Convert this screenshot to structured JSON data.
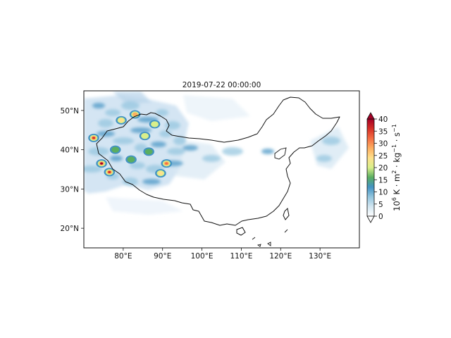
{
  "title": "2019-07-22 00:00:00",
  "map": {
    "lon_range": [
      70,
      140
    ],
    "lat_range": [
      15,
      55
    ],
    "lon_ticks": [
      {
        "value": 80,
        "label": "80°E"
      },
      {
        "value": 90,
        "label": "90°E"
      },
      {
        "value": 100,
        "label": "100°E"
      },
      {
        "value": 110,
        "label": "110°E"
      },
      {
        "value": 120,
        "label": "120°E"
      },
      {
        "value": 130,
        "label": "130°E"
      }
    ],
    "lat_ticks": [
      {
        "value": 20,
        "label": "20°N"
      },
      {
        "value": 30,
        "label": "30°N"
      },
      {
        "value": 40,
        "label": "40°N"
      },
      {
        "value": 50,
        "label": "50°N"
      }
    ],
    "boundary_icon": "china-boundary-outline"
  },
  "colorbar": {
    "min": 0,
    "max": 40,
    "ticks": [
      "0",
      "5",
      "10",
      "15",
      "20",
      "25",
      "30",
      "35",
      "40"
    ],
    "label_base": "10",
    "label_exp": "6",
    "label_units": " K · m",
    "label_m_exp": "2",
    "label_kg": " · kg",
    "label_kg_exp": "−1",
    "label_s": " · s",
    "label_s_exp": "−1",
    "colors": [
      "#ffffff",
      "#d1e5f0",
      "#92c5de",
      "#4393c3",
      "#5aae61",
      "#d9ef8b",
      "#fee08b",
      "#fdae61",
      "#f46d43",
      "#d73027",
      "#a50026"
    ]
  },
  "hotspots": [
    {
      "lon": 72.5,
      "lat": 43.0,
      "value": 34
    },
    {
      "lon": 74.5,
      "lat": 36.5,
      "value": 38
    },
    {
      "lon": 76.5,
      "lat": 34.3,
      "value": 36
    },
    {
      "lon": 79.5,
      "lat": 47.5,
      "value": 22
    },
    {
      "lon": 83.0,
      "lat": 49.0,
      "value": 26
    },
    {
      "lon": 85.5,
      "lat": 43.5,
      "value": 20
    },
    {
      "lon": 88.0,
      "lat": 46.5,
      "value": 18
    },
    {
      "lon": 91.0,
      "lat": 36.5,
      "value": 32
    },
    {
      "lon": 89.5,
      "lat": 34.0,
      "value": 22
    },
    {
      "lon": 82.0,
      "lat": 37.5,
      "value": 16
    },
    {
      "lon": 78.0,
      "lat": 40.0,
      "value": 14
    },
    {
      "lon": 86.5,
      "lat": 39.5,
      "value": 15
    }
  ]
}
